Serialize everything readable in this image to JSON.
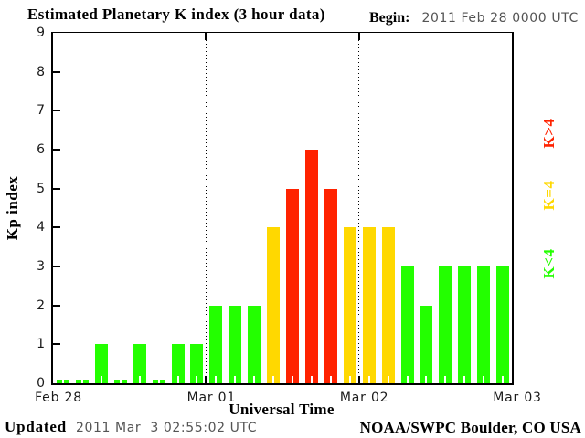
{
  "header": {
    "title": "Estimated Planetary K index (3 hour data)",
    "begin_label": "Begin:",
    "begin_value": "2011 Feb 28 0000 UTC"
  },
  "axes": {
    "y_title": "Kp index",
    "x_title": "Universal Time"
  },
  "legend": {
    "items": [
      {
        "id": "high",
        "label": "K>4",
        "color": "#ff2200"
      },
      {
        "id": "mid",
        "label": "K=4",
        "color": "#ffd800"
      },
      {
        "id": "low",
        "label": "K<4",
        "color": "#23ff00"
      }
    ]
  },
  "footer": {
    "updated_label": "Updated",
    "updated_value": "2011 Mar  3 02:55:02 UTC",
    "credit": "NOAA/SWPC Boulder, CO USA"
  },
  "colors": {
    "low": "#23ff00",
    "mid": "#ffd800",
    "high": "#ff2200",
    "axis": "#000000",
    "muted_text": "#545454",
    "tick_text": "#1a1a1a"
  },
  "chart_data": {
    "type": "bar",
    "title": "Estimated Planetary K index (3 hour data)",
    "xlabel": "Universal Time",
    "ylabel": "Kp index",
    "ylim": [
      0,
      9
    ],
    "y_ticks": [
      0,
      1,
      2,
      3,
      4,
      5,
      6,
      7,
      8,
      9
    ],
    "x_tick_labels": [
      "Feb 28",
      "Mar 01",
      "Mar 02",
      "Mar 03"
    ],
    "interval_hours": 3,
    "bars_per_day": 8,
    "series": [
      {
        "date": "Feb 28",
        "values": [
          0,
          0,
          1,
          0,
          1,
          0,
          1,
          1
        ]
      },
      {
        "date": "Mar 01",
        "values": [
          2,
          2,
          2,
          4,
          5,
          6,
          5,
          4
        ]
      },
      {
        "date": "Mar 02",
        "values": [
          4,
          4,
          3,
          2,
          3,
          3,
          3,
          3
        ]
      }
    ],
    "color_rule": {
      "below_4": "green",
      "equal_4": "yellow",
      "above_4": "red"
    },
    "legend_position": "right-rotated",
    "grid": "dotted vertical lines at day boundaries"
  }
}
